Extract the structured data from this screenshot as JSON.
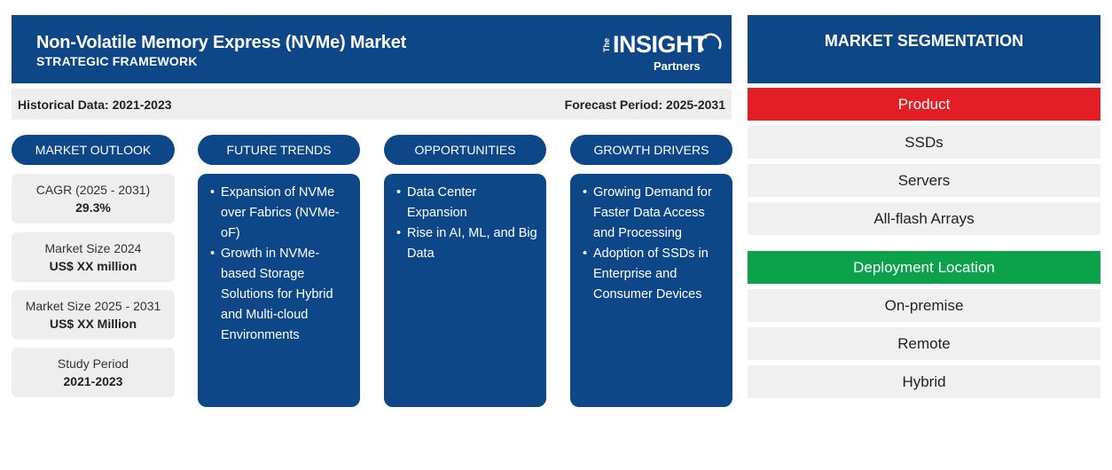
{
  "header": {
    "title": "Non-Volatile Memory Express (NVMe) Market",
    "subtitle": "STRATEGIC FRAMEWORK"
  },
  "logo": {
    "prefix": "The",
    "main": "INSIGHT",
    "sub": "Partners"
  },
  "periods": {
    "historical": "Historical Data: 2021-2023",
    "forecast": "Forecast Period: 2025-2031"
  },
  "columns": {
    "outlook": "MARKET OUTLOOK",
    "trends": "FUTURE TRENDS",
    "opportunities": "OPPORTUNITIES",
    "drivers": "GROWTH DRIVERS"
  },
  "outlook": [
    {
      "label": "CAGR (2025 - 2031)",
      "value": "29.3%"
    },
    {
      "label": "Market Size 2024",
      "value": "US$ XX million"
    },
    {
      "label": "Market Size 2025 - 2031",
      "value": "US$ XX Million"
    },
    {
      "label": "Study Period",
      "value": "2021-2023"
    }
  ],
  "trends": [
    "Expansion of NVMe over Fabrics (NVMe-oF)",
    "Growth in NVMe-based Storage Solutions for Hybrid and Multi-cloud Environments"
  ],
  "opportunities": [
    "Data Center Expansion",
    "Rise in AI, ML, and Big Data"
  ],
  "drivers": [
    "Growing Demand for Faster Data Access and Processing",
    "Adoption of SSDs in Enterprise and Consumer Devices"
  ],
  "segmentation": {
    "title": "MARKET SEGMENTATION",
    "groups": [
      {
        "name": "Product",
        "color": "#e31e24",
        "items": [
          "SSDs",
          "Servers",
          "All-flash Arrays"
        ]
      },
      {
        "name": "Deployment Location",
        "color": "#0ca14b",
        "items": [
          "On-premise",
          "Remote",
          "Hybrid"
        ]
      }
    ]
  },
  "colors": {
    "primary": "#0e4788",
    "panel_bg": "#eeeeee"
  }
}
